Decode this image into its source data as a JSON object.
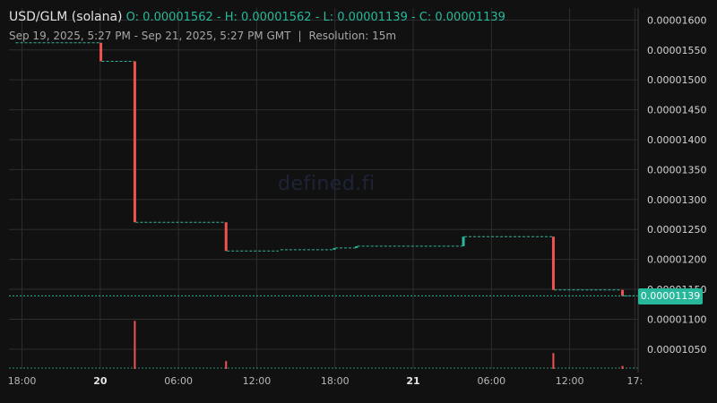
{
  "header": {
    "pair": "USD/GLM (solana)",
    "ohlc": "O: 0.00001562 - H: 0.00001562 - L: 0.00001139 - C: 0.00001139",
    "range": "Sep 19, 2025, 5:27 PM - Sep 21, 2025, 5:27 PM GMT",
    "separator": "|",
    "resolution": "Resolution: 15m"
  },
  "watermark": "defined.fi",
  "last_price_label": "0.00001139",
  "colors": {
    "background": "#111111",
    "up": "#26b99b",
    "down": "#ef5350",
    "grid": "#2e2e2e"
  },
  "chart_data": {
    "type": "candlestick",
    "x_range_hours": [
      -0.45,
      47.8
    ],
    "y_range": [
      1.01685e-05,
      1.62e-05
    ],
    "last_price": 1.139e-05,
    "ohlc": [
      {
        "t": 0.0,
        "o": 1.562e-05,
        "h": 1.562e-05,
        "l": 1.562e-05,
        "c": 1.562e-05
      },
      {
        "t": 6.6,
        "o": 1.562e-05,
        "h": 1.562e-05,
        "l": 1.531e-05,
        "c": 1.531e-05
      },
      {
        "t": 9.2,
        "o": 1.531e-05,
        "h": 1.531e-05,
        "l": 1.262e-05,
        "c": 1.262e-05
      },
      {
        "t": 16.2,
        "o": 1.262e-05,
        "h": 1.262e-05,
        "l": 1.214e-05,
        "c": 1.214e-05
      },
      {
        "t": 20.3,
        "o": 1.214e-05,
        "h": 1.216e-05,
        "l": 1.214e-05,
        "c": 1.216e-05
      },
      {
        "t": 24.5,
        "o": 1.216e-05,
        "h": 1.219e-05,
        "l": 1.216e-05,
        "c": 1.219e-05
      },
      {
        "t": 26.2,
        "o": 1.219e-05,
        "h": 1.222e-05,
        "l": 1.219e-05,
        "c": 1.222e-05
      },
      {
        "t": 34.4,
        "o": 1.222e-05,
        "h": 1.238e-05,
        "l": 1.222e-05,
        "c": 1.238e-05
      },
      {
        "t": 41.3,
        "o": 1.238e-05,
        "h": 1.238e-05,
        "l": 1.149e-05,
        "c": 1.149e-05
      },
      {
        "t": 46.6,
        "o": 1.149e-05,
        "h": 1.149e-05,
        "l": 1.139e-05,
        "c": 1.139e-05
      }
    ],
    "volume": [
      {
        "t": 9.2,
        "value": 0.79,
        "dir": "down"
      },
      {
        "t": 16.2,
        "value": 0.13,
        "dir": "down"
      },
      {
        "t": 41.3,
        "value": 0.26,
        "dir": "down"
      },
      {
        "t": 46.6,
        "value": 0.05,
        "dir": "down"
      }
    ],
    "y_ticks": [
      "0.00001050",
      "0.00001100",
      "0.00001150",
      "0.00001200",
      "0.00001250",
      "0.00001300",
      "0.00001350",
      "0.00001400",
      "0.00001450",
      "0.00001500",
      "0.00001550",
      "0.00001600"
    ],
    "x_ticks": [
      {
        "label": "18:00",
        "h": 0.55,
        "bold": false
      },
      {
        "label": "20",
        "h": 6.55,
        "bold": true
      },
      {
        "label": "06:00",
        "h": 12.55,
        "bold": false
      },
      {
        "label": "12:00",
        "h": 18.55,
        "bold": false
      },
      {
        "label": "18:00",
        "h": 24.55,
        "bold": false
      },
      {
        "label": "21",
        "h": 30.55,
        "bold": true
      },
      {
        "label": "06:00",
        "h": 36.55,
        "bold": false
      },
      {
        "label": "12:00",
        "h": 42.55,
        "bold": false
      },
      {
        "label": "17:",
        "h": 47.55,
        "bold": false
      }
    ]
  }
}
